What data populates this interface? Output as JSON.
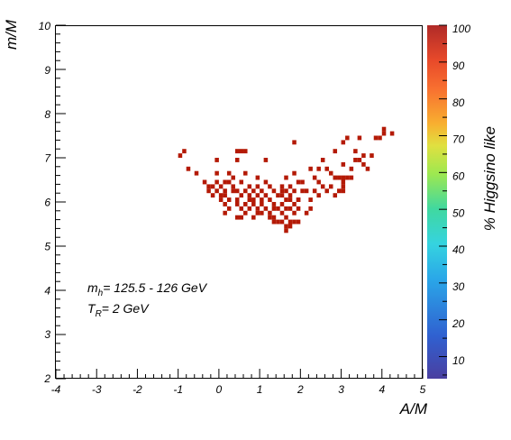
{
  "chart_data": {
    "type": "heatmap",
    "title": "",
    "xlabel": "A/M",
    "ylabel": "m/M",
    "zlabel": "% Higgsino like",
    "xlim": [
      -4,
      5
    ],
    "ylim": [
      2,
      10
    ],
    "zlim": [
      4,
      100
    ],
    "x_ticks": [
      "-4",
      "-3",
      "-2",
      "-1",
      "0",
      "1",
      "2",
      "3",
      "4",
      "5"
    ],
    "y_ticks": [
      "2",
      "3",
      "4",
      "5",
      "6",
      "7",
      "8",
      "9",
      "10"
    ],
    "z_ticks": [
      "10",
      "20",
      "30",
      "40",
      "50",
      "60",
      "70",
      "80",
      "90",
      "100"
    ],
    "cell_size": [
      0.1,
      0.1
    ],
    "cell_color": "#b41a06",
    "cell_value": 97,
    "annotations": [
      {
        "main": "m",
        "sub": "h",
        "rest": "= 125.5 - 126 GeV"
      },
      {
        "main": "T",
        "sub": "R",
        "rest": "= 2 GeV"
      }
    ],
    "cells": [
      [
        -1.0,
        7.0
      ],
      [
        -0.9,
        7.1
      ],
      [
        -0.8,
        6.7
      ],
      [
        -0.6,
        6.6
      ],
      [
        -0.4,
        6.4
      ],
      [
        -0.3,
        6.3
      ],
      [
        -0.3,
        6.2
      ],
      [
        -0.2,
        6.1
      ],
      [
        -0.2,
        6.3
      ],
      [
        -0.1,
        6.6
      ],
      [
        -0.1,
        6.9
      ],
      [
        -0.1,
        6.2
      ],
      [
        -0.1,
        6.4
      ],
      [
        0.0,
        6.3
      ],
      [
        0.0,
        6.1
      ],
      [
        0.0,
        6.0
      ],
      [
        0.1,
        6.2
      ],
      [
        0.1,
        5.9
      ],
      [
        0.1,
        6.4
      ],
      [
        0.1,
        5.7
      ],
      [
        0.1,
        6.1
      ],
      [
        0.2,
        6.6
      ],
      [
        0.2,
        6.4
      ],
      [
        0.2,
        6.0
      ],
      [
        0.2,
        5.8
      ],
      [
        0.3,
        6.2
      ],
      [
        0.3,
        6.5
      ],
      [
        0.3,
        6.3
      ],
      [
        0.4,
        7.1
      ],
      [
        0.4,
        6.0
      ],
      [
        0.4,
        6.9
      ],
      [
        0.4,
        6.2
      ],
      [
        0.4,
        5.9
      ],
      [
        0.4,
        5.6
      ],
      [
        0.5,
        7.1
      ],
      [
        0.5,
        6.4
      ],
      [
        0.5,
        6.1
      ],
      [
        0.5,
        5.8
      ],
      [
        0.5,
        5.6
      ],
      [
        0.6,
        7.1
      ],
      [
        0.6,
        5.9
      ],
      [
        0.6,
        6.6
      ],
      [
        0.6,
        6.2
      ],
      [
        0.6,
        5.7
      ],
      [
        0.7,
        6.1
      ],
      [
        0.7,
        6.3
      ],
      [
        0.7,
        6.0
      ],
      [
        0.7,
        5.8
      ],
      [
        0.8,
        6.0
      ],
      [
        0.8,
        6.2
      ],
      [
        0.8,
        5.9
      ],
      [
        0.8,
        5.6
      ],
      [
        0.9,
        6.5
      ],
      [
        0.9,
        6.3
      ],
      [
        0.9,
        6.1
      ],
      [
        0.9,
        5.8
      ],
      [
        0.9,
        5.7
      ],
      [
        1.0,
        6.2
      ],
      [
        1.0,
        6.0
      ],
      [
        1.0,
        5.9
      ],
      [
        1.0,
        5.7
      ],
      [
        1.1,
        6.9
      ],
      [
        1.1,
        6.4
      ],
      [
        1.1,
        6.1
      ],
      [
        1.1,
        5.8
      ],
      [
        1.2,
        6.3
      ],
      [
        1.2,
        6.0
      ],
      [
        1.2,
        5.7
      ],
      [
        1.2,
        5.6
      ],
      [
        1.3,
        6.2
      ],
      [
        1.3,
        5.9
      ],
      [
        1.3,
        5.5
      ],
      [
        1.3,
        5.6
      ],
      [
        1.3,
        5.8
      ],
      [
        1.4,
        6.1
      ],
      [
        1.4,
        5.8
      ],
      [
        1.4,
        5.5
      ],
      [
        1.5,
        6.3
      ],
      [
        1.5,
        6.2
      ],
      [
        1.5,
        6.1
      ],
      [
        1.5,
        5.9
      ],
      [
        1.5,
        5.7
      ],
      [
        1.5,
        5.5
      ],
      [
        1.6,
        6.5
      ],
      [
        1.6,
        6.2
      ],
      [
        1.6,
        6.0
      ],
      [
        1.6,
        5.8
      ],
      [
        1.6,
        5.6
      ],
      [
        1.6,
        5.4
      ],
      [
        1.6,
        5.3
      ],
      [
        1.7,
        6.1
      ],
      [
        1.7,
        6.3
      ],
      [
        1.7,
        6.0
      ],
      [
        1.7,
        5.8
      ],
      [
        1.7,
        5.5
      ],
      [
        1.7,
        5.4
      ],
      [
        1.8,
        7.3
      ],
      [
        1.8,
        6.6
      ],
      [
        1.8,
        6.2
      ],
      [
        1.8,
        5.9
      ],
      [
        1.8,
        5.7
      ],
      [
        1.8,
        5.5
      ],
      [
        1.9,
        6.0
      ],
      [
        1.9,
        6.4
      ],
      [
        1.9,
        6.0
      ],
      [
        1.9,
        5.8
      ],
      [
        1.9,
        5.5
      ],
      [
        2.0,
        6.2
      ],
      [
        2.0,
        6.4
      ],
      [
        2.1,
        5.7
      ],
      [
        2.1,
        6.2
      ],
      [
        2.2,
        6.7
      ],
      [
        2.2,
        6.0
      ],
      [
        2.2,
        5.8
      ],
      [
        2.3,
        6.5
      ],
      [
        2.3,
        6.2
      ],
      [
        2.4,
        6.7
      ],
      [
        2.4,
        6.4
      ],
      [
        2.4,
        6.1
      ],
      [
        2.5,
        6.9
      ],
      [
        2.5,
        6.3
      ],
      [
        2.6,
        6.7
      ],
      [
        2.6,
        6.2
      ],
      [
        2.7,
        6.3
      ],
      [
        2.7,
        6.6
      ],
      [
        2.8,
        6.5
      ],
      [
        2.8,
        6.1
      ],
      [
        2.8,
        7.1
      ],
      [
        2.9,
        6.5
      ],
      [
        2.9,
        6.2
      ],
      [
        3.0,
        7.3
      ],
      [
        3.0,
        6.5
      ],
      [
        3.0,
        6.8
      ],
      [
        3.0,
        6.2
      ],
      [
        3.0,
        6.4
      ],
      [
        3.0,
        6.3
      ],
      [
        3.1,
        7.4
      ],
      [
        3.1,
        6.5
      ],
      [
        3.2,
        6.5
      ],
      [
        3.2,
        6.7
      ],
      [
        3.3,
        7.1
      ],
      [
        3.3,
        6.9
      ],
      [
        3.4,
        7.4
      ],
      [
        3.4,
        6.9
      ],
      [
        3.5,
        7.0
      ],
      [
        3.5,
        6.8
      ],
      [
        3.6,
        6.7
      ],
      [
        3.7,
        7.0
      ],
      [
        3.8,
        7.4
      ],
      [
        3.9,
        7.4
      ],
      [
        4.0,
        7.6
      ],
      [
        4.0,
        7.5
      ],
      [
        4.2,
        7.5
      ]
    ]
  }
}
